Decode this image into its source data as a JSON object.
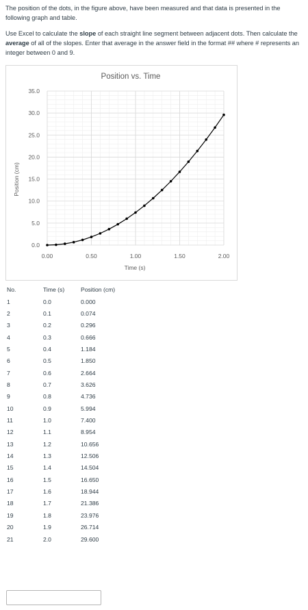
{
  "question": {
    "para1": "The position of the dots, in the figure above, have been measured and that data is presented in the following graph and table.",
    "para2": {
      "t1": "Use Excel to calculate the ",
      "b1": "slope",
      "t2": " of each straight line segment between adjacent dots.  Then calculate the ",
      "b2": "average",
      "t3": " of all of the slopes.  Enter that average in the answer field in the format ## where # represents an integer between 0 and 9."
    }
  },
  "chart_data": {
    "type": "scatter",
    "title": "Position vs. Time",
    "xlabel": "Time (s)",
    "ylabel": "Position (cm)",
    "xlim": [
      0,
      2
    ],
    "ylim": [
      0,
      35
    ],
    "xticks": [
      "0.00",
      "0.50",
      "1.00",
      "1.50",
      "2.00"
    ],
    "yticks": [
      "0.0",
      "5.0",
      "10.0",
      "15.0",
      "20.0",
      "25.0",
      "30.0",
      "35.0"
    ],
    "grid": true,
    "legend": "none",
    "line_color": "#000000",
    "marker_color": "#000000",
    "x": [
      0.0,
      0.1,
      0.2,
      0.3,
      0.4,
      0.5,
      0.6,
      0.7,
      0.8,
      0.9,
      1.0,
      1.1,
      1.2,
      1.3,
      1.4,
      1.5,
      1.6,
      1.7,
      1.8,
      1.9,
      2.0
    ],
    "y": [
      0.0,
      0.074,
      0.296,
      0.666,
      1.184,
      1.85,
      2.664,
      3.626,
      4.736,
      5.994,
      7.4,
      8.954,
      10.656,
      12.506,
      14.504,
      16.65,
      18.944,
      21.386,
      23.976,
      26.714,
      29.6
    ]
  },
  "table": {
    "headers": [
      "No.",
      "Time (s)",
      "Position (cm)"
    ],
    "rows": [
      [
        "1",
        "0.0",
        "0.000"
      ],
      [
        "2",
        "0.1",
        "0.074"
      ],
      [
        "3",
        "0.2",
        "0.296"
      ],
      [
        "4",
        "0.3",
        "0.666"
      ],
      [
        "5",
        "0.4",
        "1.184"
      ],
      [
        "6",
        "0.5",
        "1.850"
      ],
      [
        "7",
        "0.6",
        "2.664"
      ],
      [
        "8",
        "0.7",
        "3.626"
      ],
      [
        "9",
        "0.8",
        "4.736"
      ],
      [
        "10",
        "0.9",
        "5.994"
      ],
      [
        "11",
        "1.0",
        "7.400"
      ],
      [
        "12",
        "1.1",
        "8.954"
      ],
      [
        "13",
        "1.2",
        "10.656"
      ],
      [
        "14",
        "1.3",
        "12.506"
      ],
      [
        "15",
        "1.4",
        "14.504"
      ],
      [
        "16",
        "1.5",
        "16.650"
      ],
      [
        "17",
        "1.6",
        "18.944"
      ],
      [
        "18",
        "1.7",
        "21.386"
      ],
      [
        "19",
        "1.8",
        "23.976"
      ],
      [
        "20",
        "1.9",
        "26.714"
      ],
      [
        "21",
        "2.0",
        "29.600"
      ]
    ]
  },
  "answer": {
    "value": ""
  }
}
